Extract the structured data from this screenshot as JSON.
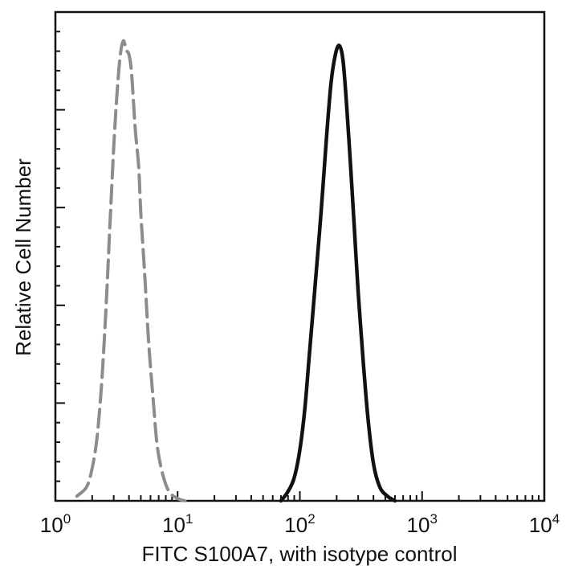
{
  "chart_data": {
    "type": "line",
    "title": "",
    "xlabel": "FITC  S100A7,  with isotype control",
    "ylabel": "Relative Cell Number",
    "xscale": "log",
    "xlim": [
      1,
      10000
    ],
    "ylim": [
      0,
      1.0
    ],
    "grid": false,
    "legend": "none",
    "x_ticks": [
      {
        "base": "10",
        "exp": "0"
      },
      {
        "base": "10",
        "exp": "1"
      },
      {
        "base": "10",
        "exp": "2"
      },
      {
        "base": "10",
        "exp": "3"
      },
      {
        "base": "10",
        "exp": "4"
      }
    ],
    "series": [
      {
        "style": "dashed",
        "color": "#8c8c8c",
        "x": [
          1.5,
          1.8,
          2.0,
          2.2,
          2.4,
          2.6,
          2.8,
          3.0,
          3.2,
          3.4,
          3.6,
          3.8,
          4.0,
          4.2,
          4.5,
          4.8,
          5.0,
          5.4,
          5.8,
          6.3,
          6.8,
          7.5,
          8.5,
          10.0,
          11.5
        ],
        "y": [
          0.01,
          0.03,
          0.07,
          0.14,
          0.26,
          0.42,
          0.6,
          0.76,
          0.88,
          0.96,
          0.99,
          0.97,
          0.96,
          0.92,
          0.8,
          0.72,
          0.62,
          0.48,
          0.34,
          0.22,
          0.12,
          0.06,
          0.02,
          0.005,
          0.0
        ]
      },
      {
        "style": "solid",
        "color": "#111111",
        "x": [
          70,
          80,
          90,
          100,
          110,
          120,
          135,
          150,
          165,
          180,
          195,
          210,
          225,
          240,
          260,
          280,
          300,
          330,
          360,
          400,
          450,
          520,
          600
        ],
        "y": [
          0.0,
          0.02,
          0.05,
          0.11,
          0.2,
          0.32,
          0.48,
          0.63,
          0.78,
          0.9,
          0.96,
          0.98,
          0.95,
          0.86,
          0.72,
          0.58,
          0.45,
          0.3,
          0.18,
          0.08,
          0.03,
          0.01,
          0.0
        ]
      }
    ]
  }
}
